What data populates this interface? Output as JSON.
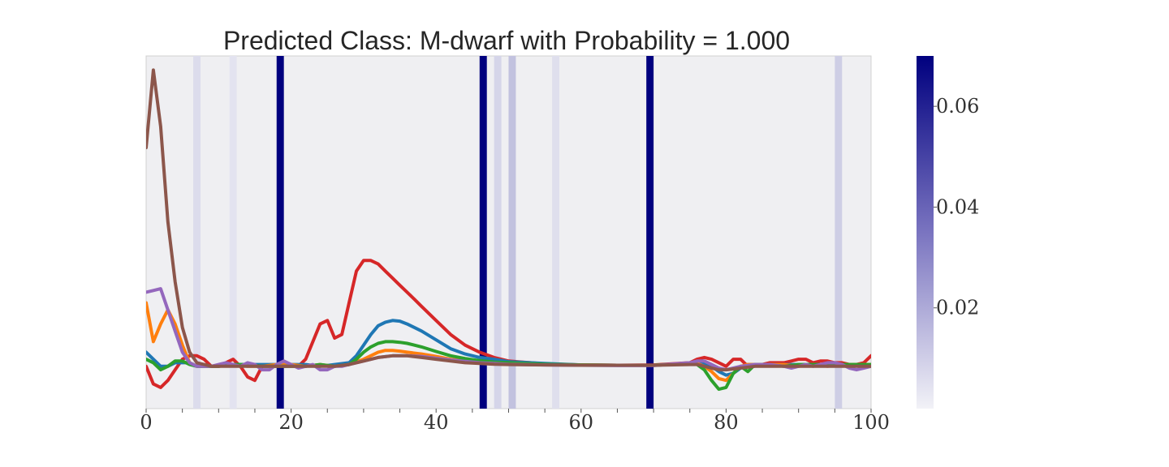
{
  "chart_data": {
    "type": "line",
    "title": "Predicted Class: M-dwarf with Probability = 1.000",
    "xlabel": "",
    "ylabel": "",
    "xlim": [
      0,
      100
    ],
    "ylim": [
      0,
      1
    ],
    "x_ticks": [
      "0",
      "20",
      "40",
      "60",
      "80",
      "100"
    ],
    "y_ticks_shown": false,
    "grid": false,
    "background": "#efeff2",
    "colorbar": {
      "range": [
        0,
        0.07
      ],
      "ticks": [
        "0.02",
        "0.04",
        "0.06"
      ],
      "tick_values": [
        0.02,
        0.04,
        0.06
      ],
      "color_low": "#f2f2f7",
      "color_high": "#00007f"
    },
    "attention_bands": [
      {
        "x": 7,
        "w": 0.09
      },
      {
        "x": 12,
        "w": 0.06
      },
      {
        "x": 18.5,
        "w": 1.0
      },
      {
        "x": 46.5,
        "w": 1.0
      },
      {
        "x": 48.5,
        "w": 0.12
      },
      {
        "x": 50.5,
        "w": 0.2
      },
      {
        "x": 56.5,
        "w": 0.08
      },
      {
        "x": 69.5,
        "w": 1.0
      },
      {
        "x": 95.5,
        "w": 0.15
      }
    ],
    "series": [
      {
        "color": "#d62728",
        "x": [
          0,
          1,
          2,
          3,
          4,
          5,
          6,
          7,
          8,
          9,
          10,
          11,
          12,
          13,
          14,
          15,
          16,
          17,
          18,
          19,
          20,
          21,
          22,
          23,
          24,
          25,
          26,
          27,
          28,
          29,
          30,
          31,
          32,
          33,
          34,
          35,
          36,
          37,
          38,
          40,
          42,
          44,
          46,
          48,
          50,
          55,
          60,
          65,
          70,
          75,
          76,
          77,
          78,
          79,
          80,
          81,
          82,
          83,
          84,
          85,
          86,
          87,
          88,
          89,
          90,
          91,
          92,
          93,
          94,
          95,
          96,
          97,
          98,
          99,
          100
        ],
        "y": [
          0.12,
          0.07,
          0.06,
          0.08,
          0.11,
          0.14,
          0.15,
          0.15,
          0.14,
          0.12,
          0.12,
          0.13,
          0.14,
          0.12,
          0.09,
          0.08,
          0.12,
          0.12,
          0.12,
          0.12,
          0.12,
          0.12,
          0.14,
          0.19,
          0.24,
          0.25,
          0.2,
          0.21,
          0.3,
          0.39,
          0.42,
          0.42,
          0.41,
          0.39,
          0.37,
          0.35,
          0.33,
          0.31,
          0.29,
          0.25,
          0.21,
          0.18,
          0.16,
          0.145,
          0.135,
          0.127,
          0.124,
          0.123,
          0.124,
          0.13,
          0.14,
          0.145,
          0.14,
          0.13,
          0.12,
          0.14,
          0.14,
          0.12,
          0.125,
          0.125,
          0.13,
          0.13,
          0.13,
          0.135,
          0.14,
          0.14,
          0.13,
          0.135,
          0.135,
          0.13,
          0.13,
          0.125,
          0.125,
          0.13,
          0.15
        ]
      },
      {
        "color": "#1f77b4",
        "x": [
          0,
          1,
          2,
          3,
          4,
          5,
          6,
          7,
          8,
          9,
          10,
          12,
          14,
          16,
          18,
          20,
          22,
          24,
          26,
          28,
          29,
          30,
          31,
          32,
          33,
          34,
          35,
          36,
          38,
          40,
          42,
          44,
          46,
          48,
          50,
          55,
          60,
          65,
          70,
          75,
          76,
          77,
          78,
          79,
          80,
          81,
          82,
          83,
          85,
          88,
          90,
          92,
          94,
          96,
          98,
          100
        ],
        "y": [
          0.16,
          0.14,
          0.12,
          0.12,
          0.13,
          0.13,
          0.13,
          0.12,
          0.12,
          0.12,
          0.12,
          0.125,
          0.125,
          0.125,
          0.125,
          0.125,
          0.125,
          0.12,
          0.125,
          0.13,
          0.15,
          0.18,
          0.21,
          0.235,
          0.245,
          0.25,
          0.248,
          0.24,
          0.22,
          0.195,
          0.17,
          0.155,
          0.145,
          0.14,
          0.133,
          0.128,
          0.124,
          0.123,
          0.123,
          0.128,
          0.13,
          0.128,
          0.12,
          0.105,
          0.095,
          0.1,
          0.115,
          0.125,
          0.125,
          0.125,
          0.125,
          0.125,
          0.125,
          0.125,
          0.125,
          0.125
        ]
      },
      {
        "color": "#ff7f0e",
        "x": [
          0,
          1,
          2,
          3,
          4,
          5,
          6,
          7,
          8,
          9,
          10,
          12,
          14,
          16,
          18,
          20,
          22,
          24,
          26,
          28,
          30,
          32,
          33,
          34,
          35,
          36,
          38,
          40,
          42,
          44,
          46,
          48,
          50,
          55,
          60,
          65,
          70,
          75,
          76,
          77,
          78,
          79,
          80,
          81,
          82,
          83,
          85,
          88,
          90,
          92,
          94,
          96,
          98,
          100
        ],
        "y": [
          0.3,
          0.19,
          0.24,
          0.28,
          0.24,
          0.18,
          0.13,
          0.12,
          0.12,
          0.12,
          0.12,
          0.125,
          0.12,
          0.12,
          0.125,
          0.125,
          0.12,
          0.125,
          0.12,
          0.125,
          0.14,
          0.16,
          0.165,
          0.165,
          0.163,
          0.16,
          0.155,
          0.148,
          0.14,
          0.135,
          0.132,
          0.13,
          0.128,
          0.125,
          0.124,
          0.123,
          0.123,
          0.128,
          0.128,
          0.12,
          0.105,
          0.085,
          0.08,
          0.1,
          0.12,
          0.125,
          0.125,
          0.125,
          0.12,
          0.125,
          0.12,
          0.125,
          0.125,
          0.125
        ]
      },
      {
        "color": "#2ca02c",
        "x": [
          0,
          1,
          2,
          3,
          4,
          5,
          6,
          7,
          8,
          9,
          10,
          12,
          14,
          16,
          18,
          20,
          22,
          24,
          26,
          28,
          29,
          30,
          31,
          32,
          33,
          34,
          35,
          36,
          38,
          40,
          42,
          44,
          46,
          48,
          50,
          55,
          60,
          65,
          70,
          75,
          76,
          77,
          78,
          79,
          80,
          81,
          82,
          83,
          84,
          85,
          88,
          90,
          92,
          94,
          96,
          98,
          100
        ],
        "y": [
          0.14,
          0.13,
          0.11,
          0.12,
          0.135,
          0.135,
          0.125,
          0.12,
          0.12,
          0.12,
          0.12,
          0.125,
          0.125,
          0.12,
          0.12,
          0.12,
          0.12,
          0.125,
          0.12,
          0.125,
          0.14,
          0.16,
          0.175,
          0.185,
          0.19,
          0.19,
          0.188,
          0.185,
          0.175,
          0.162,
          0.15,
          0.142,
          0.136,
          0.132,
          0.13,
          0.126,
          0.124,
          0.123,
          0.123,
          0.128,
          0.125,
          0.11,
          0.08,
          0.055,
          0.06,
          0.1,
          0.12,
          0.105,
          0.125,
          0.125,
          0.12,
          0.125,
          0.125,
          0.125,
          0.125,
          0.125,
          0.125
        ]
      },
      {
        "color": "#9467bd",
        "x": [
          0,
          1,
          2,
          3,
          4,
          5,
          6,
          7,
          8,
          9,
          10,
          11,
          12,
          13,
          14,
          15,
          16,
          17,
          18,
          19,
          20,
          21,
          22,
          23,
          24,
          25,
          26,
          27,
          28,
          30,
          32,
          34,
          36,
          38,
          40,
          42,
          44,
          46,
          48,
          50,
          55,
          60,
          65,
          70,
          75,
          76,
          77,
          78,
          79,
          80,
          82,
          84,
          86,
          88,
          89,
          90,
          91,
          92,
          94,
          95,
          96,
          97,
          98,
          99,
          100
        ],
        "y": [
          0.33,
          0.335,
          0.34,
          0.28,
          0.22,
          0.16,
          0.13,
          0.12,
          0.12,
          0.12,
          0.125,
          0.13,
          0.125,
          0.12,
          0.13,
          0.125,
          0.11,
          0.11,
          0.125,
          0.135,
          0.125,
          0.115,
          0.12,
          0.125,
          0.11,
          0.11,
          0.12,
          0.12,
          0.125,
          0.135,
          0.145,
          0.15,
          0.15,
          0.148,
          0.143,
          0.138,
          0.134,
          0.13,
          0.128,
          0.126,
          0.124,
          0.123,
          0.122,
          0.122,
          0.13,
          0.135,
          0.135,
          0.125,
          0.115,
          0.11,
          0.12,
          0.125,
          0.125,
          0.12,
          0.115,
          0.12,
          0.125,
          0.12,
          0.13,
          0.13,
          0.125,
          0.115,
          0.11,
          0.115,
          0.12
        ]
      },
      {
        "color": "#8c564b",
        "x": [
          0,
          1,
          2,
          3,
          4,
          5,
          6,
          7,
          8,
          9,
          10,
          12,
          14,
          16,
          18,
          20,
          22,
          24,
          26,
          28,
          30,
          32,
          34,
          36,
          38,
          40,
          42,
          44,
          46,
          48,
          50,
          55,
          60,
          65,
          70,
          75,
          76,
          77,
          78,
          79,
          80,
          82,
          84,
          86,
          88,
          90,
          92,
          94,
          96,
          98,
          100
        ],
        "y": [
          0.74,
          0.96,
          0.8,
          0.53,
          0.36,
          0.23,
          0.16,
          0.13,
          0.125,
          0.12,
          0.12,
          0.12,
          0.12,
          0.12,
          0.12,
          0.12,
          0.12,
          0.12,
          0.12,
          0.125,
          0.135,
          0.145,
          0.15,
          0.15,
          0.145,
          0.14,
          0.135,
          0.13,
          0.128,
          0.126,
          0.125,
          0.124,
          0.123,
          0.123,
          0.123,
          0.125,
          0.125,
          0.12,
          0.115,
          0.11,
          0.11,
          0.115,
          0.12,
          0.12,
          0.12,
          0.12,
          0.12,
          0.12,
          0.12,
          0.12,
          0.12
        ]
      }
    ]
  }
}
